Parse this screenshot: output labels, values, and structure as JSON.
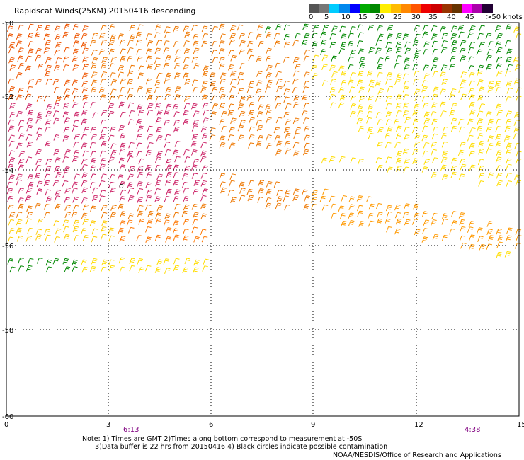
{
  "title": "Rapidscat Winds(25KM) 20150416 descending",
  "legend": {
    "colors": [
      "#555555",
      "#777777",
      "#00ccff",
      "#0088ee",
      "#0000ff",
      "#00aa00",
      "#008800",
      "#ffee00",
      "#ffbb00",
      "#ff8800",
      "#ff5500",
      "#ee0000",
      "#cc0000",
      "#993300",
      "#663300",
      "#ff00ff",
      "#aa00aa",
      "#220033"
    ],
    "labels": [
      "0",
      "5",
      "10",
      "15",
      "20",
      "25",
      "30",
      "35",
      "40",
      "45",
      ">50 knots"
    ]
  },
  "map": {
    "y_ticks": [
      "-50",
      "-52",
      "-54",
      "-56",
      "-58",
      "-60"
    ],
    "x_ticks": [
      "0",
      "3",
      "6",
      "9",
      "12",
      "15"
    ],
    "times": [
      "6:13",
      "4:38"
    ],
    "time_color": "#800080",
    "contamination_marker": "o"
  },
  "notes": "Note: 1) Times are GMT 2)Times along bottom correspond to measurement at -50S\n      3)Data buffer is 22 hrs from 20150416 4) Black circles indicate possible contamination",
  "credit": "NOAA/NESDIS/Office of Research and Applications"
}
